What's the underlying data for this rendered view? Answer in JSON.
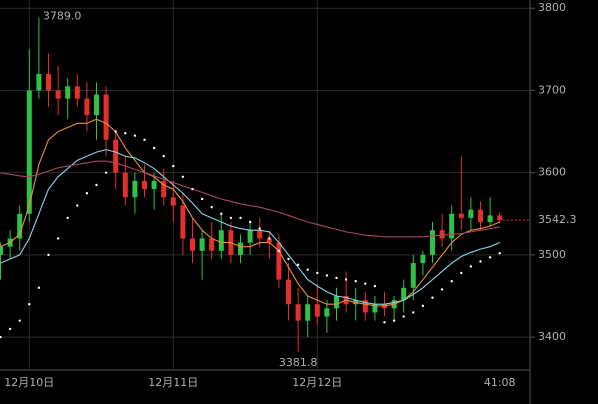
{
  "chart_data": {
    "type": "candlestick",
    "categories": [
      null,
      null,
      null,
      "12月10日",
      null,
      null,
      null,
      null,
      null,
      null,
      null,
      null,
      null,
      null,
      null,
      null,
      null,
      null,
      "12月11日",
      null,
      null,
      null,
      null,
      null,
      null,
      null,
      null,
      null,
      null,
      null,
      null,
      null,
      null,
      "12月12日",
      null,
      null,
      null,
      null,
      null,
      null,
      null,
      null,
      null,
      null,
      null,
      null,
      null,
      null,
      null,
      null,
      null,
      null,
      "41:08"
    ],
    "ohlc": [
      [
        3500,
        3515,
        3470,
        3510
      ],
      [
        3510,
        3530,
        3495,
        3520
      ],
      [
        3520,
        3560,
        3505,
        3550
      ],
      [
        3550,
        3750,
        3540,
        3700
      ],
      [
        3700,
        3789.0,
        3690,
        3720
      ],
      [
        3720,
        3745,
        3680,
        3700
      ],
      [
        3700,
        3730,
        3670,
        3690
      ],
      [
        3690,
        3715,
        3665,
        3705
      ],
      [
        3705,
        3720,
        3680,
        3690
      ],
      [
        3690,
        3710,
        3650,
        3670
      ],
      [
        3670,
        3710,
        3640,
        3695
      ],
      [
        3695,
        3705,
        3620,
        3640
      ],
      [
        3640,
        3650,
        3580,
        3600
      ],
      [
        3600,
        3620,
        3560,
        3570
      ],
      [
        3570,
        3600,
        3550,
        3590
      ],
      [
        3590,
        3610,
        3570,
        3580
      ],
      [
        3580,
        3600,
        3555,
        3590
      ],
      [
        3590,
        3605,
        3560,
        3570
      ],
      [
        3570,
        3590,
        3540,
        3560
      ],
      [
        3560,
        3575,
        3500,
        3520
      ],
      [
        3520,
        3545,
        3490,
        3505
      ],
      [
        3505,
        3530,
        3470,
        3520
      ],
      [
        3520,
        3540,
        3495,
        3505
      ],
      [
        3505,
        3550,
        3495,
        3530
      ],
      [
        3530,
        3540,
        3490,
        3500
      ],
      [
        3500,
        3525,
        3490,
        3515
      ],
      [
        3515,
        3540,
        3500,
        3530
      ],
      [
        3530,
        3545,
        3510,
        3520
      ],
      [
        3520,
        3530,
        3495,
        3515
      ],
      [
        3515,
        3525,
        3460,
        3470
      ],
      [
        3470,
        3490,
        3420,
        3440
      ],
      [
        3440,
        3460,
        3381.8,
        3420
      ],
      [
        3420,
        3450,
        3400,
        3440
      ],
      [
        3440,
        3465,
        3415,
        3425
      ],
      [
        3425,
        3445,
        3405,
        3435
      ],
      [
        3435,
        3460,
        3420,
        3450
      ],
      [
        3450,
        3480,
        3430,
        3440
      ],
      [
        3440,
        3460,
        3420,
        3445
      ],
      [
        3445,
        3455,
        3420,
        3430
      ],
      [
        3430,
        3450,
        3420,
        3440
      ],
      [
        3440,
        3455,
        3425,
        3435
      ],
      [
        3435,
        3450,
        3420,
        3445
      ],
      [
        3445,
        3470,
        3430,
        3460
      ],
      [
        3460,
        3500,
        3445,
        3490
      ],
      [
        3490,
        3505,
        3475,
        3500
      ],
      [
        3500,
        3540,
        3490,
        3530
      ],
      [
        3530,
        3550,
        3510,
        3520
      ],
      [
        3520,
        3560,
        3505,
        3550
      ],
      [
        3550,
        3620,
        3530,
        3545
      ],
      [
        3545,
        3570,
        3530,
        3555
      ],
      [
        3555,
        3565,
        3530,
        3540
      ],
      [
        3540,
        3570,
        3535,
        3548
      ],
      [
        3548,
        3552,
        3538,
        3542.3
      ]
    ],
    "up_color": "#2fc24a",
    "down_color": "#e3302d",
    "lines": [
      {
        "color": "#e8903a",
        "values": [
          3510,
          3515,
          3525,
          3560,
          3610,
          3640,
          3650,
          3655,
          3660,
          3660,
          3665,
          3660,
          3650,
          3630,
          3615,
          3600,
          3595,
          3585,
          3580,
          3565,
          3545,
          3530,
          3520,
          3515,
          3515,
          3510,
          3510,
          3515,
          3515,
          3505,
          3485,
          3465,
          3450,
          3445,
          3440,
          3440,
          3445,
          3442,
          3440,
          3438,
          3438,
          3440,
          3445,
          3455,
          3470,
          3485,
          3500,
          3515,
          3525,
          3530,
          3532,
          3535,
          3540
        ]
      },
      {
        "color": "#8fd3e8",
        "values": [
          3490,
          3495,
          3500,
          3520,
          3550,
          3580,
          3595,
          3605,
          3615,
          3620,
          3625,
          3628,
          3625,
          3620,
          3618,
          3612,
          3605,
          3595,
          3585,
          3575,
          3563,
          3550,
          3545,
          3540,
          3535,
          3532,
          3530,
          3530,
          3528,
          3515,
          3500,
          3485,
          3470,
          3462,
          3455,
          3450,
          3448,
          3445,
          3442,
          3440,
          3440,
          3442,
          3445,
          3452,
          3460,
          3470,
          3480,
          3490,
          3498,
          3503,
          3507,
          3510,
          3515
        ]
      },
      {
        "color": "#a8475e",
        "values": [
          3600,
          3598,
          3596,
          3595,
          3598,
          3602,
          3606,
          3608,
          3610,
          3612,
          3614,
          3614,
          3612,
          3608,
          3604,
          3600,
          3596,
          3592,
          3588,
          3584,
          3580,
          3576,
          3572,
          3568,
          3565,
          3562,
          3560,
          3558,
          3555,
          3552,
          3548,
          3544,
          3540,
          3537,
          3534,
          3531,
          3528,
          3526,
          3524,
          3523,
          3522,
          3522,
          3522,
          3522,
          3522,
          3523,
          3524,
          3525,
          3526,
          3528,
          3530,
          3532,
          3534
        ]
      }
    ],
    "sar": {
      "color": "#ffffff",
      "values": [
        3400,
        3410,
        3420,
        3440,
        3460,
        3500,
        3520,
        3545,
        3560,
        3575,
        3585,
        3600,
        3650,
        3648,
        3645,
        3640,
        3630,
        3620,
        3608,
        3595,
        3580,
        3568,
        3558,
        3550,
        3545,
        3545,
        3540,
        3532,
        3520,
        3505,
        3495,
        3488,
        3482,
        3478,
        3475,
        3472,
        3470,
        3468,
        3465,
        3462,
        3418,
        3420,
        3425,
        3430,
        3438,
        3448,
        3458,
        3468,
        3478,
        3486,
        3492,
        3497,
        3502
      ]
    },
    "max_label": "3789.0",
    "min_label": "3381.8",
    "last_label": "3542.3",
    "ylim": [
      3360,
      3810
    ],
    "yticks": [
      3400,
      3500,
      3600,
      3700,
      3800
    ],
    "grid": true
  }
}
